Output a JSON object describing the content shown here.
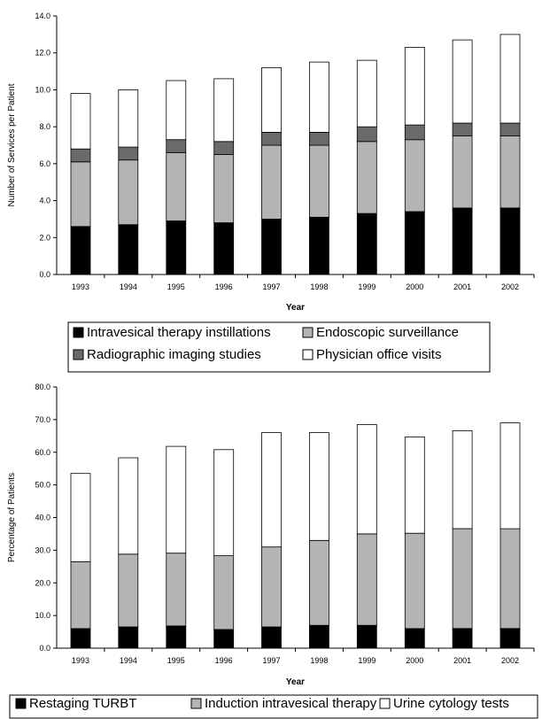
{
  "chart_data": [
    {
      "type": "bar",
      "stacked": true,
      "title": "",
      "xlabel": "Year",
      "ylabel": "Number of Services per Patient",
      "ylim": [
        0,
        14
      ],
      "yticks": [
        "0.0",
        "2.0",
        "4.0",
        "6.0",
        "8.0",
        "10.0",
        "12.0",
        "14.0"
      ],
      "categories": [
        "1993",
        "1994",
        "1995",
        "1996",
        "1997",
        "1998",
        "1999",
        "2000",
        "2001",
        "2002"
      ],
      "legend_position": "bottom",
      "series": [
        {
          "name": "Intravesical therapy instillations",
          "color": "#000000",
          "values": [
            2.6,
            2.7,
            2.9,
            2.8,
            3.0,
            3.1,
            3.3,
            3.4,
            3.6,
            3.6
          ]
        },
        {
          "name": "Endoscopic surveillance",
          "color": "#b4b4b4",
          "values": [
            3.5,
            3.5,
            3.7,
            3.7,
            4.0,
            3.9,
            3.9,
            3.9,
            3.9,
            3.9
          ]
        },
        {
          "name": "Radiographic imaging studies",
          "color": "#6a6a6a",
          "values": [
            0.7,
            0.7,
            0.7,
            0.7,
            0.7,
            0.7,
            0.8,
            0.8,
            0.7,
            0.7
          ]
        },
        {
          "name": "Physician office visits",
          "color": "#ffffff",
          "values": [
            3.0,
            3.1,
            3.2,
            3.4,
            3.5,
            3.8,
            3.6,
            4.2,
            4.5,
            4.8
          ]
        }
      ]
    },
    {
      "type": "bar",
      "stacked": true,
      "title": "",
      "xlabel": "Year",
      "ylabel": "Percentage of Patients",
      "ylim": [
        0,
        80
      ],
      "yticks": [
        "0.0",
        "10.0",
        "20.0",
        "30.0",
        "40.0",
        "50.0",
        "60.0",
        "70.0",
        "80.0"
      ],
      "categories": [
        "1993",
        "1994",
        "1995",
        "1996",
        "1997",
        "1998",
        "1999",
        "2000",
        "2001",
        "2002"
      ],
      "legend_position": "bottom",
      "series": [
        {
          "name": "Restaging TURBT",
          "color": "#000000",
          "values": [
            6.0,
            6.5,
            6.8,
            5.7,
            6.5,
            7.0,
            7.0,
            6.0,
            6.0,
            6.0
          ]
        },
        {
          "name": "Induction intravesical therapy",
          "color": "#b4b4b4",
          "values": [
            20.5,
            22.3,
            22.3,
            22.6,
            24.5,
            26.0,
            28.0,
            29.2,
            30.6,
            30.6
          ]
        },
        {
          "name": "Urine cytology tests",
          "color": "#ffffff",
          "values": [
            27.0,
            29.5,
            32.7,
            32.5,
            35.0,
            33.0,
            33.5,
            29.5,
            30.0,
            32.4
          ]
        }
      ]
    }
  ]
}
